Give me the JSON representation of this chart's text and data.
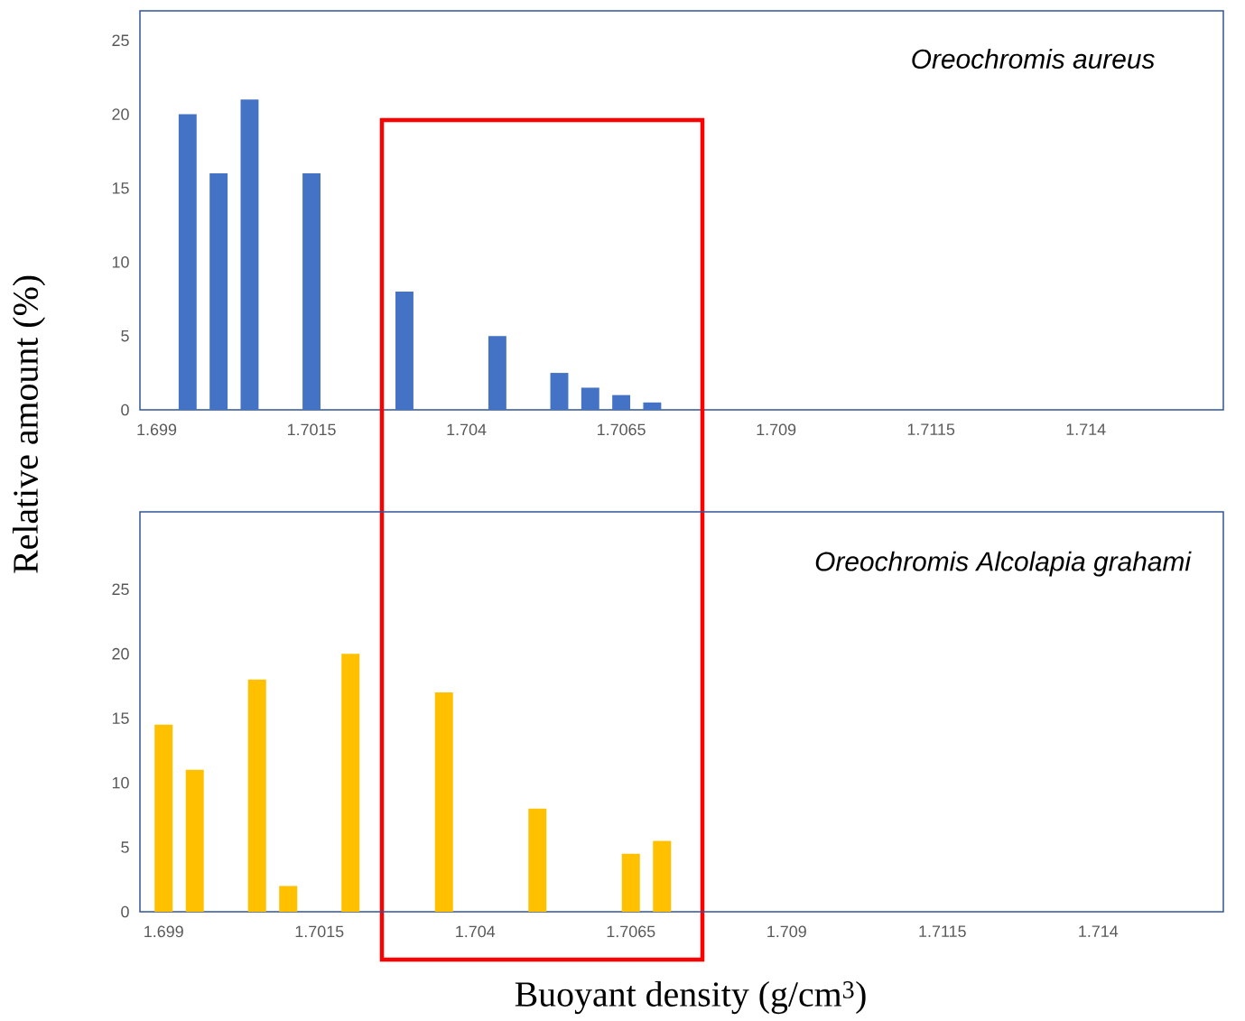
{
  "chart_data": [
    {
      "type": "bar",
      "ylabel": "Relative amount (%)",
      "annotations": [
        "Oreochromis aureus"
      ],
      "x": [
        1.6995,
        1.7,
        1.7005,
        1.7015,
        1.703,
        1.7045,
        1.7055,
        1.706,
        1.7065,
        1.707
      ],
      "values": [
        20,
        16,
        21,
        16,
        8,
        5,
        2.5,
        1.5,
        1,
        0.5
      ],
      "color": "#4472c4",
      "xlim": [
        1.69873,
        1.71622
      ],
      "ylim": [
        0,
        27
      ],
      "xticks": [
        1.699,
        1.7015,
        1.704,
        1.7065,
        1.709,
        1.7115,
        1.714
      ],
      "yticks": [
        0,
        5,
        10,
        15,
        20,
        25
      ]
    },
    {
      "type": "bar",
      "xlabel": "Buoyant density (g/cm$^{3}$)",
      "annotations": [
        "Oreochromis Alcolapia grahami"
      ],
      "x": [
        1.699,
        1.6995,
        1.7005,
        1.701,
        1.702,
        1.7035,
        1.705,
        1.7065,
        1.707
      ],
      "values": [
        14.5,
        11,
        18,
        2,
        20,
        17,
        8,
        4.5,
        5.5
      ],
      "color": "#ffc000",
      "xlim": [
        1.69862,
        1.71601
      ],
      "ylim": [
        0,
        31
      ],
      "xticks": [
        1.699,
        1.7015,
        1.704,
        1.7065,
        1.709,
        1.7115,
        1.714
      ],
      "yticks": [
        0,
        5,
        10,
        15,
        20,
        25
      ]
    }
  ]
}
